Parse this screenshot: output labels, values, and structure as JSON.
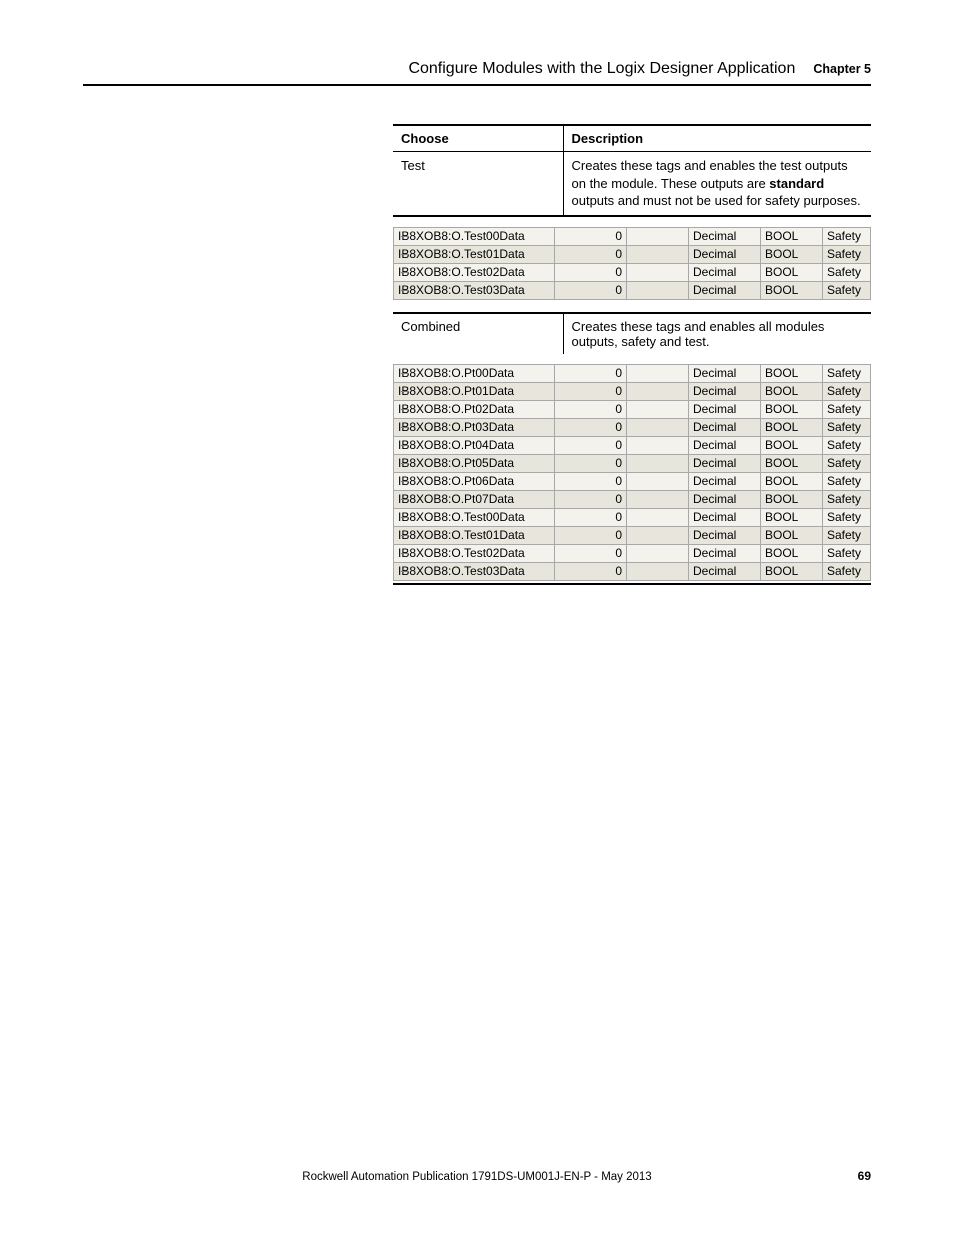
{
  "header": {
    "title": "Configure Modules with the Logix Designer Application",
    "chapter": "Chapter 5"
  },
  "table1": {
    "head_choose": "Choose",
    "head_desc": "Description",
    "row1_choose": "Test",
    "row1_desc_pre": "Creates these tags and enables the test outputs on the module. These outputs are ",
    "row1_desc_bold": "standard",
    "row1_desc_post": " outputs and must not be used for safety purposes."
  },
  "grid1": {
    "rows": [
      {
        "name": "IB8XOB8:O.Test00Data",
        "val": "0",
        "style": "Decimal",
        "type": "BOOL",
        "safety": "Safety"
      },
      {
        "name": "IB8XOB8:O.Test01Data",
        "val": "0",
        "style": "Decimal",
        "type": "BOOL",
        "safety": "Safety"
      },
      {
        "name": "IB8XOB8:O.Test02Data",
        "val": "0",
        "style": "Decimal",
        "type": "BOOL",
        "safety": "Safety"
      },
      {
        "name": "IB8XOB8:O.Test03Data",
        "val": "0",
        "style": "Decimal",
        "type": "BOOL",
        "safety": "Safety"
      }
    ]
  },
  "table2": {
    "row1_choose": "Combined",
    "row1_desc": "Creates these tags and enables all modules outputs, safety and test."
  },
  "grid2": {
    "rows": [
      {
        "name": "IB8XOB8:O.Pt00Data",
        "val": "0",
        "style": "Decimal",
        "type": "BOOL",
        "safety": "Safety"
      },
      {
        "name": "IB8XOB8:O.Pt01Data",
        "val": "0",
        "style": "Decimal",
        "type": "BOOL",
        "safety": "Safety"
      },
      {
        "name": "IB8XOB8:O.Pt02Data",
        "val": "0",
        "style": "Decimal",
        "type": "BOOL",
        "safety": "Safety"
      },
      {
        "name": "IB8XOB8:O.Pt03Data",
        "val": "0",
        "style": "Decimal",
        "type": "BOOL",
        "safety": "Safety"
      },
      {
        "name": "IB8XOB8:O.Pt04Data",
        "val": "0",
        "style": "Decimal",
        "type": "BOOL",
        "safety": "Safety"
      },
      {
        "name": "IB8XOB8:O.Pt05Data",
        "val": "0",
        "style": "Decimal",
        "type": "BOOL",
        "safety": "Safety"
      },
      {
        "name": "IB8XOB8:O.Pt06Data",
        "val": "0",
        "style": "Decimal",
        "type": "BOOL",
        "safety": "Safety"
      },
      {
        "name": "IB8XOB8:O.Pt07Data",
        "val": "0",
        "style": "Decimal",
        "type": "BOOL",
        "safety": "Safety"
      },
      {
        "name": "IB8XOB8:O.Test00Data",
        "val": "0",
        "style": "Decimal",
        "type": "BOOL",
        "safety": "Safety"
      },
      {
        "name": "IB8XOB8:O.Test01Data",
        "val": "0",
        "style": "Decimal",
        "type": "BOOL",
        "safety": "Safety"
      },
      {
        "name": "IB8XOB8:O.Test02Data",
        "val": "0",
        "style": "Decimal",
        "type": "BOOL",
        "safety": "Safety"
      },
      {
        "name": "IB8XOB8:O.Test03Data",
        "val": "0",
        "style": "Decimal",
        "type": "BOOL",
        "safety": "Safety"
      }
    ]
  },
  "footer": {
    "pub": "Rockwell Automation Publication 1791DS-UM001J-EN-P - May 2013",
    "page": "69"
  },
  "colors": {
    "row_even": "#f3f2ed",
    "row_odd": "#e7e5dc",
    "grid_border": "#a8a8a8"
  }
}
